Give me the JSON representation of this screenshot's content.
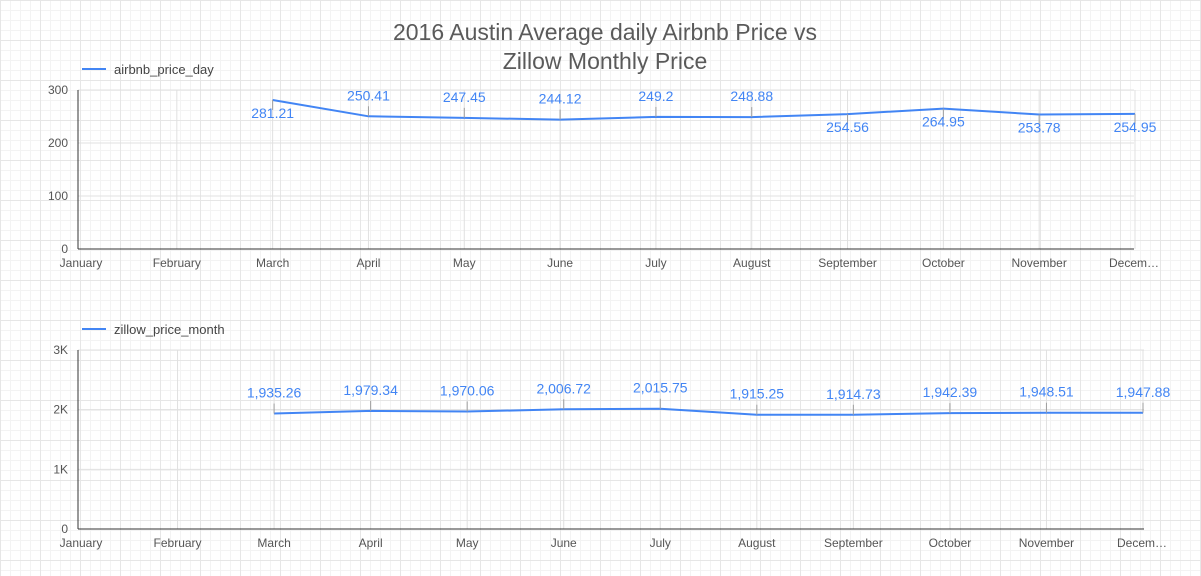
{
  "title_line1": "2016 Austin Average daily Airbnb Price vs",
  "title_line2": "Zillow Monthly Price",
  "colors": {
    "series": "#4285f4",
    "label": "#4285f4",
    "axis": "#333333",
    "grid": "#e0e0e0",
    "tick_text": "#555555"
  },
  "chart_data": [
    {
      "type": "line",
      "legend": "airbnb_price_day",
      "legend_position": "top-left",
      "categories": [
        "January",
        "February",
        "March",
        "April",
        "May",
        "June",
        "July",
        "August",
        "September",
        "October",
        "November",
        "December"
      ],
      "category_labels": [
        "January",
        "February",
        "March",
        "April",
        "May",
        "June",
        "July",
        "August",
        "September",
        "October",
        "November",
        "Decem…"
      ],
      "series": [
        {
          "name": "airbnb_price_day",
          "values": [
            null,
            null,
            281.21,
            250.41,
            247.45,
            244.12,
            249.2,
            248.88,
            254.56,
            264.95,
            253.78,
            254.95
          ],
          "labels": [
            "",
            "",
            "281.21",
            "250.41",
            "247.45",
            "244.12",
            "249.2",
            "248.88",
            "254.56",
            "264.95",
            "253.78",
            "254.95"
          ],
          "label_side": [
            "",
            "",
            "below",
            "above",
            "above",
            "above",
            "above",
            "above",
            "below",
            "below",
            "below",
            "below"
          ]
        }
      ],
      "ylim": [
        0,
        300
      ],
      "yticks": [
        0,
        100,
        200,
        300
      ],
      "ytick_labels": [
        "0",
        "100",
        "200",
        "300"
      ],
      "grid": true
    },
    {
      "type": "line",
      "legend": "zillow_price_month",
      "legend_position": "top-left",
      "categories": [
        "January",
        "February",
        "March",
        "April",
        "May",
        "June",
        "July",
        "August",
        "September",
        "October",
        "November",
        "December"
      ],
      "category_labels": [
        "January",
        "February",
        "March",
        "April",
        "May",
        "June",
        "July",
        "August",
        "September",
        "October",
        "November",
        "Decem…"
      ],
      "series": [
        {
          "name": "zillow_price_month",
          "values": [
            null,
            null,
            1935.26,
            1979.34,
            1970.06,
            2006.72,
            2015.75,
            1915.25,
            1914.73,
            1942.39,
            1948.51,
            1947.88
          ],
          "labels": [
            "",
            "",
            "1,935.26",
            "1,979.34",
            "1,970.06",
            "2,006.72",
            "2,015.75",
            "1,915.25",
            "1,914.73",
            "1,942.39",
            "1,948.51",
            "1,947.88"
          ],
          "label_side": [
            "",
            "",
            "above",
            "above",
            "above",
            "above",
            "above",
            "above",
            "above",
            "above",
            "above",
            "above"
          ]
        }
      ],
      "ylim": [
        0,
        3000
      ],
      "yticks": [
        0,
        1000,
        2000,
        3000
      ],
      "ytick_labels": [
        "0",
        "1K",
        "2K",
        "3K"
      ],
      "grid": true
    }
  ]
}
